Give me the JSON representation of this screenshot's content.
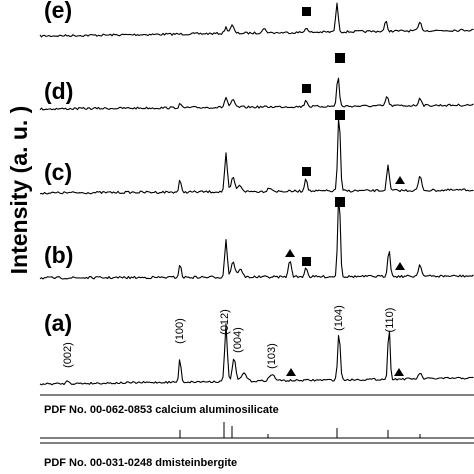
{
  "chart_data": {
    "type": "line",
    "ylabel": "Intensity (a. u. )",
    "xlabel": "",
    "series": [
      {
        "name": "(a)",
        "label": "(a)"
      },
      {
        "name": "(b)",
        "label": "(b)"
      },
      {
        "name": "(c)",
        "label": "(c)"
      },
      {
        "name": "(d)",
        "label": "(d)"
      },
      {
        "name": "(e)",
        "label": "(e)"
      }
    ],
    "miller_indices": [
      "(002)",
      "(100)",
      "(012)",
      "(004)",
      "(103)",
      "(104)",
      "(110)"
    ],
    "markers": {
      "square": "black-square",
      "triangle": "black-triangle"
    },
    "reference_patterns": [
      {
        "label": "PDF No. 00-062-0853 calcium aluminosilicate"
      },
      {
        "label": "PDF No. 00-031-0248 dmisteinbergite"
      }
    ]
  }
}
